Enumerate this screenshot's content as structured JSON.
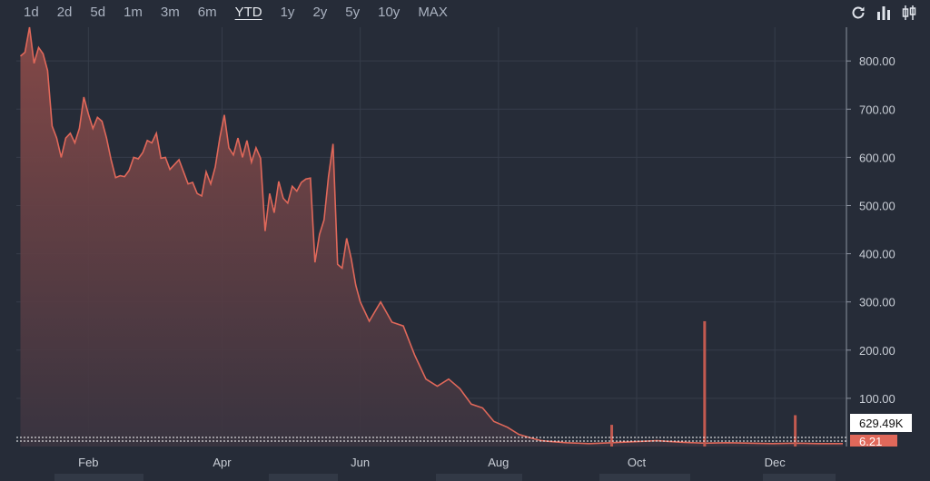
{
  "toolbar": {
    "ranges": [
      "1d",
      "2d",
      "5d",
      "1m",
      "3m",
      "6m",
      "YTD",
      "1y",
      "2y",
      "5y",
      "10y",
      "MAX"
    ],
    "active_range": "YTD",
    "icons": [
      "refresh-icon",
      "bar-chart-icon",
      "candlestick-icon"
    ]
  },
  "colors": {
    "background": "#262c38",
    "line": "#e0685a",
    "area_top": "#8a4a48",
    "volume_bar": "#c25a50",
    "last_price_badge": "#e0685a",
    "volume_badge_bg": "#ffffff"
  },
  "chart_data": {
    "type": "area",
    "x_labels": [
      "Feb",
      "Apr",
      "Jun",
      "Aug",
      "Oct",
      "Dec"
    ],
    "y_ticks": [
      "800.00",
      "700.00",
      "600.00",
      "500.00",
      "400.00",
      "300.00",
      "200.00",
      "100.00"
    ],
    "ylim": [
      0,
      870
    ],
    "series": [
      {
        "x": [
          "Jan 02",
          "Jan 04",
          "Jan 06",
          "Jan 08",
          "Jan 10",
          "Jan 12",
          "Jan 14",
          "Jan 16",
          "Jan 18",
          "Jan 20",
          "Jan 22",
          "Jan 24",
          "Jan 26",
          "Jan 28",
          "Jan 30",
          "Feb 01",
          "Feb 03",
          "Feb 05",
          "Feb 07",
          "Feb 09",
          "Feb 11",
          "Feb 13",
          "Feb 15",
          "Feb 17",
          "Feb 19",
          "Feb 21",
          "Feb 23",
          "Feb 25",
          "Feb 27",
          "Mar 01",
          "Mar 03",
          "Mar 05",
          "Mar 07",
          "Mar 09",
          "Mar 11",
          "Mar 13",
          "Mar 15",
          "Mar 17",
          "Mar 19",
          "Mar 21",
          "Mar 23",
          "Mar 25",
          "Mar 27",
          "Mar 29",
          "Mar 31",
          "Apr 02",
          "Apr 04",
          "Apr 06",
          "Apr 08",
          "Apr 10",
          "Apr 12",
          "Apr 14",
          "Apr 16",
          "Apr 18",
          "Apr 20",
          "Apr 22",
          "Apr 24",
          "Apr 26",
          "Apr 28",
          "Apr 30",
          "May 02",
          "May 04",
          "May 06",
          "May 08",
          "May 10",
          "May 12",
          "May 14",
          "May 16",
          "May 18",
          "May 20",
          "May 22",
          "May 24",
          "May 26",
          "May 28",
          "May 30",
          "Jun 01",
          "Jun 05",
          "Jun 10",
          "Jun 15",
          "Jun 20",
          "Jun 25",
          "Jun 30",
          "Jul 05",
          "Jul 10",
          "Jul 15",
          "Jul 20",
          "Jul 25",
          "Jul 30",
          "Aug 05",
          "Aug 10",
          "Aug 15",
          "Aug 20",
          "Aug 25",
          "Aug 31",
          "Sep 10",
          "Sep 20",
          "Sep 30",
          "Oct 10",
          "Oct 20",
          "Oct 31",
          "Nov 10",
          "Nov 20",
          "Nov 30",
          "Dec 10",
          "Dec 20",
          "Dec 31"
        ],
        "values": [
          810,
          818,
          870,
          795,
          828,
          815,
          780,
          665,
          640,
          600,
          640,
          650,
          630,
          660,
          725,
          690,
          660,
          683,
          675,
          640,
          595,
          558,
          562,
          560,
          573,
          600,
          597,
          610,
          635,
          630,
          650,
          598,
          600,
          575,
          585,
          595,
          570,
          545,
          548,
          525,
          520,
          570,
          545,
          580,
          640,
          688,
          620,
          605,
          640,
          600,
          635,
          590,
          620,
          598,
          447,
          525,
          485,
          550,
          515,
          505,
          540,
          530,
          548,
          555,
          557,
          382,
          440,
          470,
          560,
          628,
          378,
          370,
          432,
          390,
          335,
          300,
          260,
          300,
          258,
          250,
          190,
          140,
          125,
          140,
          120,
          88,
          80,
          52,
          40,
          25,
          18,
          12,
          10,
          8,
          6,
          8,
          10,
          12,
          9,
          7,
          8,
          7,
          6,
          7,
          6,
          6
        ]
      }
    ],
    "volume_spikes": [
      {
        "x": "Sep 20",
        "value": 45
      },
      {
        "x": "Oct 31",
        "value": 260
      },
      {
        "x": "Dec 10",
        "value": 65
      }
    ],
    "badges": {
      "volume": "629.49K",
      "last_price": "6.21"
    },
    "grid": true,
    "legend": "none"
  }
}
